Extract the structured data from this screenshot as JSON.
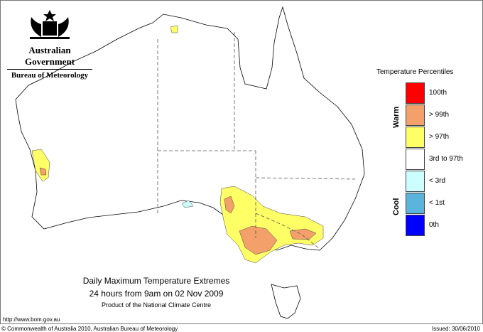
{
  "header": {
    "agency": "Australian Government",
    "bureau": "Bureau of Meteorology",
    "logo": "commonwealth-coat-of-arms"
  },
  "legend": {
    "title": "Temperature Percentiles",
    "warm_label": "Warm",
    "cool_label": "Cool",
    "items": [
      {
        "label": "100th",
        "color": "#ff0000"
      },
      {
        "label": "> 99th",
        "color": "#f4a06a"
      },
      {
        "label": "> 97th",
        "color": "#ffff66"
      },
      {
        "label": "3rd to 97th",
        "color": "#ffffff"
      },
      {
        "label": "< 3rd",
        "color": "#ccffff"
      },
      {
        "label": "< 1st",
        "color": "#5ab4dc"
      },
      {
        "label": "0th",
        "color": "#0000ff"
      }
    ]
  },
  "title": {
    "line1": "Daily Maximum Temperature Extremes",
    "line2": "24 hours from 9am on 02 Nov 2009",
    "line3": "Product of the National Climate Centre"
  },
  "footer": {
    "url": "http://www.bom.gov.au",
    "copyright": "© Commonwealth of Australia 2010, Australian Bureau of Meteorology",
    "issued": "Issued: 30/06/2010"
  }
}
